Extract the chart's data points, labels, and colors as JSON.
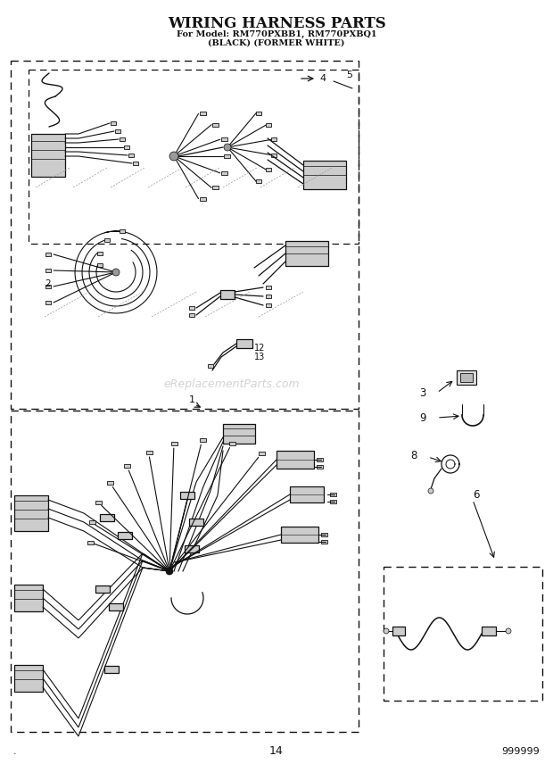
{
  "title_line1": "WIRING HARNESS PARTS",
  "title_line2": "For Model: RM770PXBB1, RM770PXBQ1",
  "title_line3": "(BLACK) (FORMER WHITE)",
  "page_number": "14",
  "part_number": "999999",
  "watermark": "eReplacementParts.com",
  "bg": "#ffffff",
  "lc": "#111111",
  "gray": "#888888",
  "lgray": "#bbbbbb"
}
